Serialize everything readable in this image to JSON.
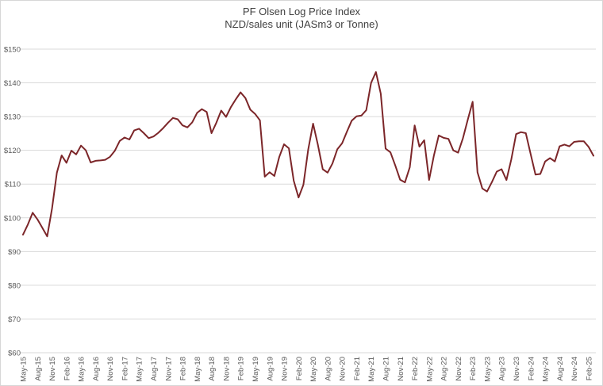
{
  "chart": {
    "title": "PF Olsen Log Price Index",
    "subtitle": "NZD/sales unit (JASm3 or Tonne)"
  },
  "colors": {
    "line": "#7c2629",
    "gridline": "#d9d9d9",
    "tick_text": "#595959",
    "title_text": "#404040"
  },
  "chart_data": {
    "type": "line",
    "title": "PF Olsen Log Price Index",
    "subtitle": "NZD/sales unit (JASm3 or Tonne)",
    "xlabel": "",
    "ylabel": "",
    "ylim": [
      60,
      150
    ],
    "grid": true,
    "legend_position": "none",
    "y_ticks": [
      60,
      70,
      80,
      90,
      100,
      110,
      120,
      130,
      140,
      150
    ],
    "y_tick_labels": [
      "$60",
      "$70",
      "$80",
      "$90",
      "$100",
      "$110",
      "$120",
      "$130",
      "$140",
      "$150"
    ],
    "x_tick_interval_months": 3,
    "x_tick_labels": [
      "May-15",
      "Aug-15",
      "Nov-15",
      "Feb-16",
      "May-16",
      "Aug-16",
      "Nov-16",
      "Feb-17",
      "May-17",
      "Aug-17",
      "Nov-17",
      "Feb-18",
      "May-18",
      "Aug-18",
      "Nov-18",
      "Feb-19",
      "May-19",
      "Aug-19",
      "Nov-19",
      "Feb-20",
      "May-20",
      "Aug-20",
      "Nov-20",
      "Feb-21",
      "May-21",
      "Aug-21",
      "Nov-21",
      "Feb-22",
      "May-22",
      "Aug-22",
      "Nov-22",
      "Feb-23",
      "May-23",
      "Aug-23",
      "Nov-23",
      "Feb-24",
      "May-24",
      "Aug-24",
      "Nov-24",
      "Feb-25"
    ],
    "x_start": "May-15",
    "x_end": "Mar-25",
    "x_frequency": "monthly",
    "series": [
      {
        "name": "PF Olsen Log Price Index",
        "color": "#7c2629",
        "values": [
          95,
          98,
          101.5,
          99.5,
          97,
          94.5,
          102.8,
          113.4,
          118.5,
          116.3,
          119.9,
          118.8,
          121.4,
          120,
          116.4,
          116.9,
          117,
          117.2,
          118.1,
          119.9,
          122.8,
          123.8,
          123.2,
          125.9,
          126.4,
          125.1,
          123.6,
          124.1,
          125.2,
          126.6,
          128.2,
          129.6,
          129.2,
          127.4,
          126.8,
          128.3,
          131.1,
          132.2,
          131.4,
          125.1,
          128.2,
          131.8,
          129.9,
          132.8,
          135.1,
          137.2,
          135.5,
          132.1,
          130.8,
          128.9,
          112.2,
          113.5,
          112.4,
          118,
          121.8,
          120.6,
          111,
          106,
          109.8,
          120.3,
          127.9,
          121.6,
          114.4,
          113.4,
          116.1,
          120.3,
          122.1,
          125.5,
          128.8,
          130.1,
          130.3,
          131.9,
          140,
          143.2,
          136.8,
          120.5,
          119.4,
          115.5,
          111.3,
          110.5,
          115,
          127.4,
          121.1,
          123,
          111.2,
          118.5,
          124.4,
          123.7,
          123.4,
          120,
          119.3,
          123.6,
          129.1,
          134.4,
          113.5,
          108.7,
          107.8,
          110.6,
          113.7,
          114.4,
          111.2,
          117.3,
          124.8,
          125.4,
          125.1,
          118.9,
          112.8,
          113,
          116.7,
          117.7,
          116.7,
          121.2,
          121.7,
          121.2,
          122.5,
          122.7,
          122.7,
          121,
          118.4
        ]
      }
    ]
  }
}
